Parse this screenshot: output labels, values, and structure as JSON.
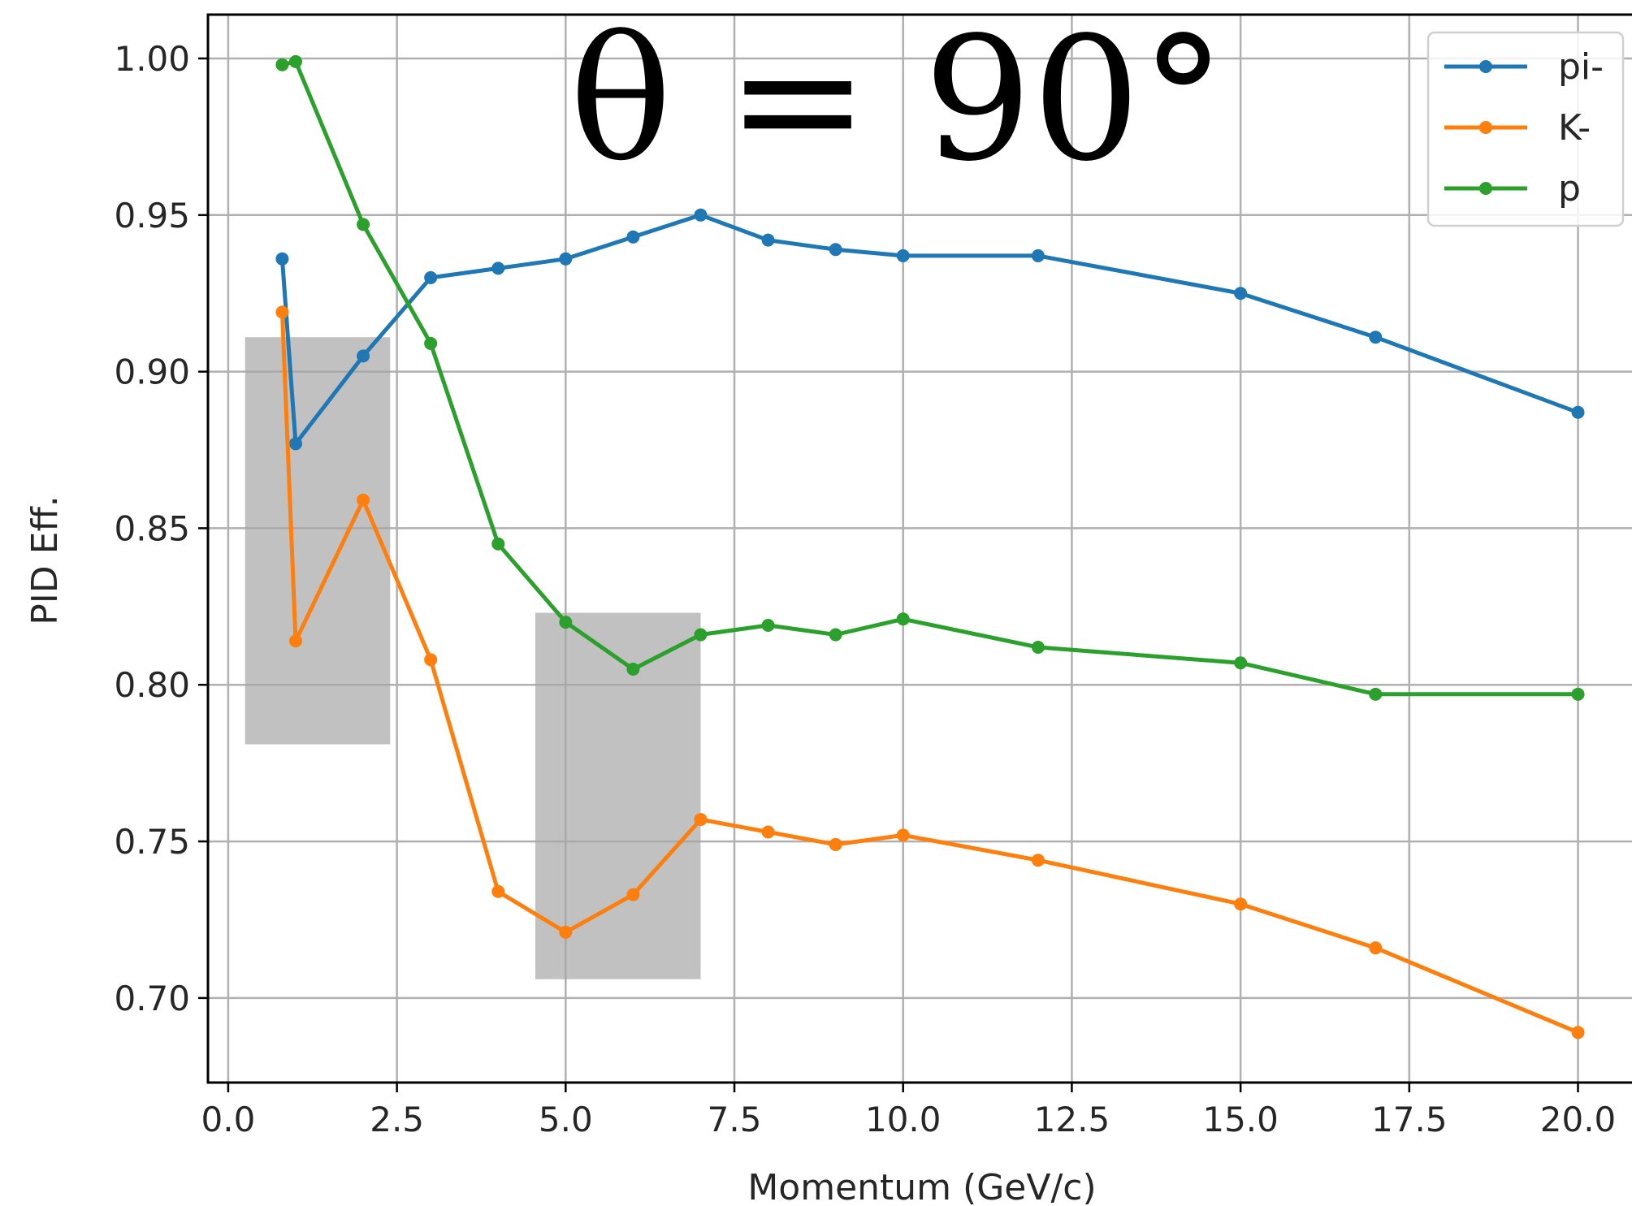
{
  "chart_data": {
    "type": "line",
    "title": "θ = 90°",
    "xlabel": "Momentum (GeV/c)",
    "ylabel": "PID Eff.",
    "xlim": [
      -0.3,
      20.8
    ],
    "ylim": [
      0.673,
      1.014
    ],
    "grid": true,
    "legend_position": "top-right",
    "x_ticks": [
      "0.0",
      "2.5",
      "5.0",
      "7.5",
      "10.0",
      "12.5",
      "15.0",
      "17.5",
      "20.0"
    ],
    "y_ticks": [
      "0.70",
      "0.75",
      "0.80",
      "0.85",
      "0.90",
      "0.95",
      "1.00"
    ],
    "highlight_regions": [
      {
        "x": [
          0.25,
          2.4
        ],
        "y": [
          0.781,
          0.911
        ]
      },
      {
        "x": [
          4.55,
          7.0
        ],
        "y": [
          0.706,
          0.823
        ]
      }
    ],
    "series": [
      {
        "name": "pi-",
        "color": "#1f77b4",
        "x": [
          0.8,
          1.0,
          2.0,
          3.0,
          4.0,
          5.0,
          6.0,
          7.0,
          8.0,
          9.0,
          10.0,
          12.0,
          15.0,
          17.0,
          20.0
        ],
        "y": [
          0.936,
          0.877,
          0.905,
          0.93,
          0.933,
          0.936,
          0.943,
          0.95,
          0.942,
          0.939,
          0.937,
          0.937,
          0.925,
          0.911,
          0.887
        ]
      },
      {
        "name": "K-",
        "color": "#ff7f0e",
        "x": [
          0.8,
          1.0,
          2.0,
          3.0,
          4.0,
          5.0,
          6.0,
          7.0,
          8.0,
          9.0,
          10.0,
          12.0,
          15.0,
          17.0,
          20.0
        ],
        "y": [
          0.919,
          0.814,
          0.859,
          0.808,
          0.734,
          0.721,
          0.733,
          0.757,
          0.753,
          0.749,
          0.752,
          0.744,
          0.73,
          0.716,
          0.689
        ]
      },
      {
        "name": "p",
        "color": "#2ca02c",
        "x": [
          0.8,
          1.0,
          2.0,
          3.0,
          4.0,
          5.0,
          6.0,
          7.0,
          8.0,
          9.0,
          10.0,
          12.0,
          15.0,
          17.0,
          20.0
        ],
        "y": [
          0.998,
          0.999,
          0.947,
          0.909,
          0.845,
          0.82,
          0.805,
          0.816,
          0.819,
          0.816,
          0.821,
          0.812,
          0.807,
          0.797,
          0.797
        ]
      }
    ]
  }
}
